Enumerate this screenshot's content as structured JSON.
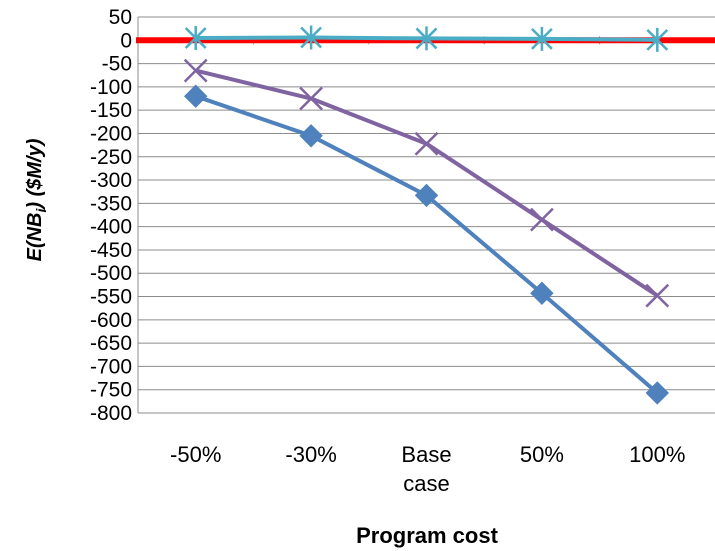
{
  "chart_data": {
    "type": "line",
    "xlabel": "Program cost",
    "ylabel": "E(NB",
    "ylabel_subscript": "i",
    "ylabel_suffix": ") ($M/y)",
    "categories": [
      [
        "-50%"
      ],
      [
        "-30%"
      ],
      [
        "Base",
        "case"
      ],
      [
        "50%"
      ],
      [
        "100%"
      ]
    ],
    "ylim": [
      -800,
      50
    ],
    "ytick_step": 50,
    "yticks": [
      "50",
      "0",
      "-50",
      "-100",
      "-150",
      "-200",
      "-250",
      "-300",
      "-350",
      "-400",
      "-450",
      "-500",
      "-550",
      "-600",
      "-650",
      "-700",
      "-750",
      "-800"
    ],
    "grid": true,
    "legend": "none",
    "zero_line_color": "#ff0000",
    "series": [
      {
        "marker": "diamond",
        "color": "#4f81bd",
        "values": [
          -120,
          -205,
          -333,
          -543,
          -757
        ]
      },
      {
        "marker": "x",
        "color": "#8064a2",
        "values": [
          -65,
          -125,
          -222,
          -385,
          -548
        ]
      },
      {
        "marker": "star",
        "color": "#4bacc6",
        "values": [
          5,
          6,
          4,
          3,
          1
        ]
      }
    ]
  }
}
